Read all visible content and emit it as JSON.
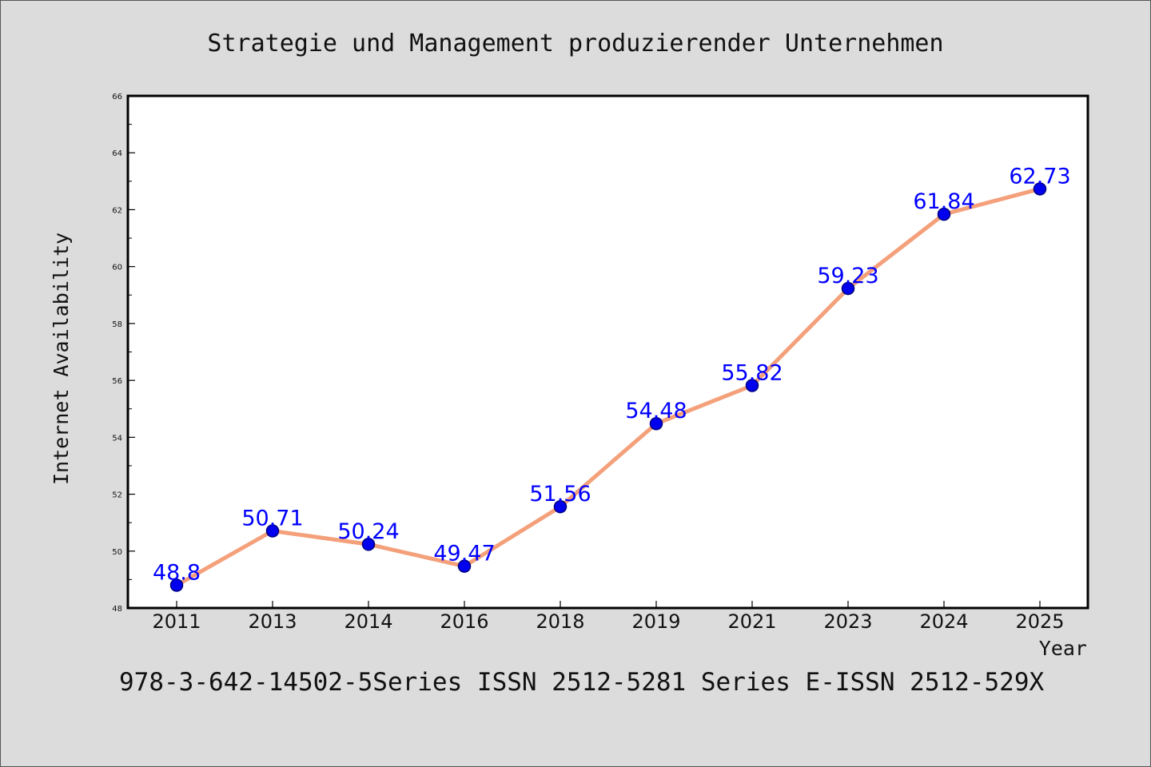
{
  "chart_data": {
    "type": "line",
    "title": "Strategie und Management produzierender Unternehmen",
    "xlabel": "Year",
    "ylabel": "Internet Availability",
    "footer": "978-3-642-14502-5Series ISSN 2512-5281 Series E-ISSN 2512-529X",
    "categories": [
      "2011",
      "2013",
      "2014",
      "2016",
      "2018",
      "2019",
      "2021",
      "2023",
      "2024",
      "2025"
    ],
    "values": [
      48.8,
      50.71,
      50.24,
      49.47,
      51.56,
      54.48,
      55.82,
      59.23,
      61.84,
      62.73
    ],
    "data_labels": [
      "48.8",
      "50.71",
      "50.24",
      "49.47",
      "51.56",
      "54.48",
      "55.82",
      "59.23",
      "61.84",
      "62.73"
    ],
    "ylim": [
      48,
      66
    ],
    "yticks": [
      48,
      50,
      52,
      54,
      56,
      58,
      60,
      62,
      64,
      66
    ],
    "grid": false,
    "legend": "none",
    "colors": {
      "line": "#f4a07a",
      "marker": "#0000ee",
      "marker_edge": "#000080",
      "label": "#0000ff",
      "background": "#dcdcdc",
      "plot_background": "#ffffff"
    }
  }
}
